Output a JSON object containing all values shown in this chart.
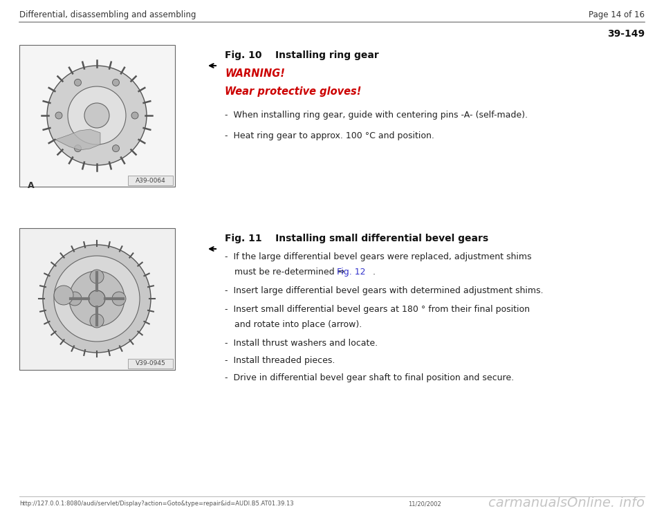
{
  "bg_color": "#ffffff",
  "header_left": "Differential, disassembling and assembling",
  "header_right": "Page 14 of 16",
  "section_number": "39-149",
  "footer_url": "http://127.0.0.1:8080/audi/servlet/Display?action=Goto&type=repair&id=AUDI.B5.AT01.39.13",
  "footer_date": "11/20/2002",
  "footer_watermark": "carmanualsOnline. info",
  "fig10_title": "Fig. 10    Installing ring gear",
  "fig10_warning1": "WARNING!",
  "fig10_warning2": "Wear protective gloves!",
  "fig10_bullet1": "When installing ring gear, guide with centering pins -A- (self-made).",
  "fig10_bullet2": "Heat ring gear to approx. 100 °C and position.",
  "fig11_title": "Fig. 11    Installing small differential bevel gears",
  "fig11_bullet1a": "If the large differential bevel gears were replaced, adjustment shims",
  "fig11_bullet1b": "must be re-determined ⇒ ",
  "fig11_bullet1b_link": "Fig. 12",
  "fig11_bullet1b_end": " .",
  "fig11_bullet2": "Insert large differential bevel gears with determined adjustment shims.",
  "fig11_bullet3a": "Insert small differential bevel gears at 180 ° from their final position",
  "fig11_bullet3b": "and rotate into place (arrow).",
  "fig11_bullet4": "Install thrust washers and locate.",
  "fig11_bullet5": "Install threaded pieces.",
  "fig11_bullet6": "Drive in differential bevel gear shaft to final position and secure.",
  "image1_label": "A39-0064",
  "image2_label": "V39-0945"
}
